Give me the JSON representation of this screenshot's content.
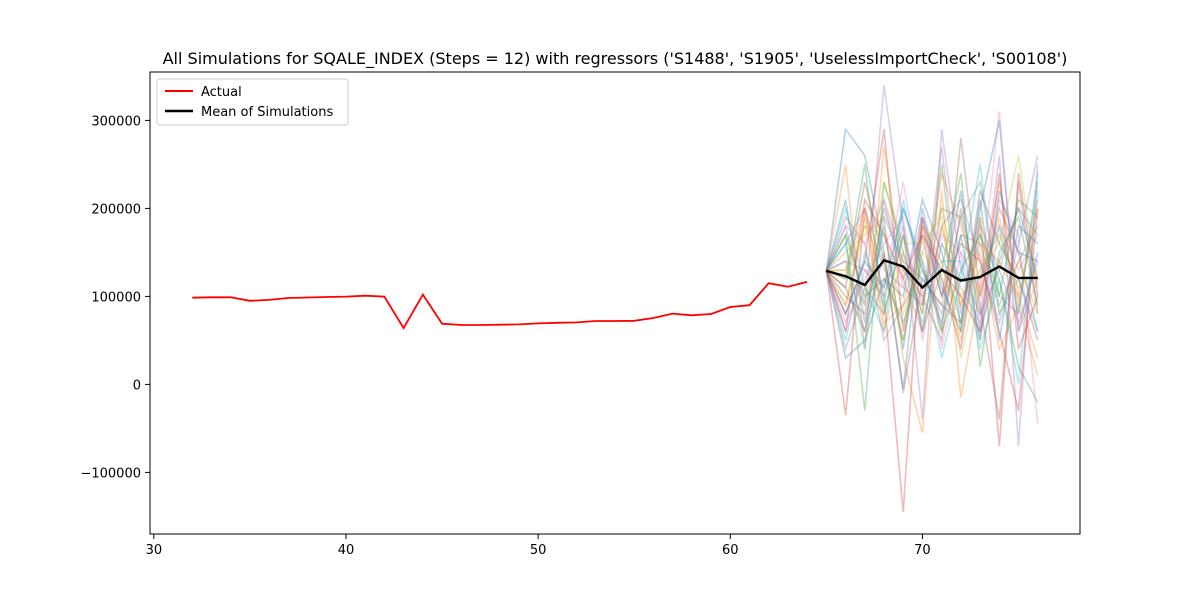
{
  "chart_data": {
    "type": "line",
    "title": "All Simulations for SQALE_INDEX (Steps = 12) with regressors ('S1488', 'S1905', 'UselessImportCheck', 'S00108')",
    "xlabel": "",
    "ylabel": "",
    "xlim": [
      29.8,
      78.2
    ],
    "ylim": [
      -170000,
      355000
    ],
    "x_ticks": [
      30,
      40,
      50,
      60,
      70
    ],
    "y_ticks": [
      -100000,
      0,
      100000,
      200000,
      300000
    ],
    "grid": false,
    "legend_position": "upper-left",
    "actual": {
      "name": "Actual",
      "color": "#ff0000",
      "x": [
        32,
        33,
        34,
        35,
        36,
        37,
        38,
        39,
        40,
        41,
        42,
        43,
        44,
        45,
        46,
        47,
        48,
        49,
        50,
        51,
        52,
        53,
        54,
        55,
        56,
        57,
        58,
        59,
        60,
        61,
        62,
        63,
        64
      ],
      "values": [
        98500,
        99000,
        99000,
        95000,
        96000,
        98200,
        98800,
        99300,
        99800,
        100800,
        99800,
        64000,
        102000,
        69000,
        67500,
        67500,
        67800,
        68200,
        69300,
        70000,
        70500,
        72000,
        72000,
        72300,
        75500,
        80500,
        78500,
        80000,
        88000,
        90000,
        115000,
        111000,
        116500
      ]
    },
    "mean": {
      "name": "Mean of Simulations",
      "color": "#000000",
      "x": [
        65,
        66,
        67,
        68,
        69,
        70,
        71,
        72,
        73,
        74,
        75,
        76
      ],
      "values": [
        129000,
        123000,
        113000,
        141000,
        134000,
        110000,
        130000,
        118000,
        122000,
        134000,
        121000,
        121000
      ]
    },
    "simulation_x": [
      65,
      66,
      67,
      68,
      69,
      70,
      71,
      72,
      73,
      74,
      75,
      76
    ],
    "simulations": [
      [
        129000,
        290000,
        260000,
        150000,
        -5000,
        190000,
        100000,
        220000,
        60000,
        140000,
        200000,
        120000
      ],
      [
        129000,
        250000,
        40000,
        270000,
        120000,
        60000,
        180000,
        90000,
        150000,
        40000,
        90000,
        210000
      ],
      [
        129000,
        170000,
        -30000,
        230000,
        150000,
        80000,
        250000,
        60000,
        170000,
        120000,
        20000,
        -20000
      ],
      [
        129000,
        -35000,
        200000,
        100000,
        -145000,
        190000,
        120000,
        40000,
        190000,
        -70000,
        240000,
        100000
      ],
      [
        129000,
        180000,
        90000,
        340000,
        180000,
        -40000,
        290000,
        130000,
        80000,
        260000,
        -70000,
        250000
      ],
      [
        129000,
        110000,
        230000,
        140000,
        50000,
        170000,
        60000,
        280000,
        100000,
        200000,
        150000,
        60000
      ],
      [
        129000,
        60000,
        130000,
        110000,
        230000,
        100000,
        170000,
        150000,
        50000,
        180000,
        130000,
        170000
      ],
      [
        129000,
        140000,
        60000,
        210000,
        140000,
        120000,
        90000,
        190000,
        230000,
        100000,
        80000,
        230000
      ],
      [
        129000,
        90000,
        180000,
        170000,
        80000,
        150000,
        200000,
        100000,
        130000,
        160000,
        260000,
        110000
      ],
      [
        129000,
        200000,
        110000,
        60000,
        200000,
        140000,
        30000,
        120000,
        250000,
        80000,
        120000,
        60000
      ],
      [
        129000,
        30000,
        50000,
        120000,
        100000,
        210000,
        150000,
        70000,
        200000,
        300000,
        60000,
        150000
      ],
      [
        129000,
        150000,
        170000,
        190000,
        30000,
        -55000,
        220000,
        -15000,
        110000,
        230000,
        100000,
        30000
      ],
      [
        129000,
        120000,
        250000,
        80000,
        170000,
        60000,
        130000,
        240000,
        20000,
        150000,
        190000,
        90000
      ],
      [
        129000,
        80000,
        140000,
        290000,
        60000,
        180000,
        100000,
        160000,
        140000,
        60000,
        -30000,
        200000
      ],
      [
        129000,
        160000,
        200000,
        130000,
        110000,
        90000,
        270000,
        80000,
        180000,
        130000,
        70000,
        140000
      ],
      [
        129000,
        100000,
        80000,
        200000,
        130000,
        100000,
        50000,
        200000,
        90000,
        -40000,
        230000,
        80000
      ],
      [
        129000,
        70000,
        120000,
        160000,
        190000,
        50000,
        160000,
        110000,
        70000,
        210000,
        170000,
        -45000
      ],
      [
        129000,
        190000,
        160000,
        50000,
        90000,
        130000,
        80000,
        170000,
        160000,
        90000,
        140000,
        180000
      ],
      [
        129000,
        130000,
        90000,
        230000,
        160000,
        160000,
        190000,
        30000,
        130000,
        170000,
        110000,
        130000
      ],
      [
        129000,
        50000,
        150000,
        90000,
        210000,
        110000,
        140000,
        140000,
        40000,
        120000,
        0,
        220000
      ],
      [
        129000,
        210000,
        70000,
        180000,
        40000,
        200000,
        110000,
        60000,
        210000,
        50000,
        180000,
        160000
      ],
      [
        129000,
        90000,
        190000,
        60000,
        150000,
        80000,
        240000,
        180000,
        100000,
        190000,
        90000,
        10000
      ],
      [
        129000,
        170000,
        100000,
        120000,
        70000,
        140000,
        60000,
        130000,
        170000,
        100000,
        210000,
        190000
      ],
      [
        129000,
        60000,
        210000,
        170000,
        120000,
        170000,
        130000,
        100000,
        60000,
        240000,
        40000,
        100000
      ],
      [
        129000,
        140000,
        130000,
        100000,
        180000,
        60000,
        180000,
        210000,
        140000,
        70000,
        160000,
        260000
      ],
      [
        129000,
        110000,
        60000,
        150000,
        -10000,
        120000,
        90000,
        70000,
        220000,
        160000,
        120000,
        50000
      ],
      [
        129000,
        180000,
        160000,
        210000,
        110000,
        190000,
        40000,
        150000,
        110000,
        310000,
        60000,
        120000
      ],
      [
        129000,
        40000,
        110000,
        80000,
        170000,
        90000,
        200000,
        190000,
        80000,
        130000,
        200000,
        170000
      ],
      [
        129000,
        120000,
        180000,
        140000,
        50000,
        150000,
        120000,
        90000,
        190000,
        80000,
        140000,
        80000
      ],
      [
        129000,
        160000,
        40000,
        190000,
        140000,
        70000,
        160000,
        120000,
        120000,
        180000,
        80000,
        240000
      ],
      [
        129000,
        80000,
        140000,
        110000,
        200000,
        130000,
        70000,
        170000,
        50000,
        220000,
        150000,
        140000
      ],
      [
        129000,
        130000,
        200000,
        70000,
        90000,
        180000,
        140000,
        50000,
        160000,
        140000,
        100000,
        200000
      ]
    ],
    "simulation_colors": [
      "#1f77b4",
      "#ff7f0e",
      "#2ca02c",
      "#d62728",
      "#9467bd",
      "#8c564b",
      "#e377c2",
      "#7f7f7f",
      "#bcbd22",
      "#17becf"
    ]
  }
}
